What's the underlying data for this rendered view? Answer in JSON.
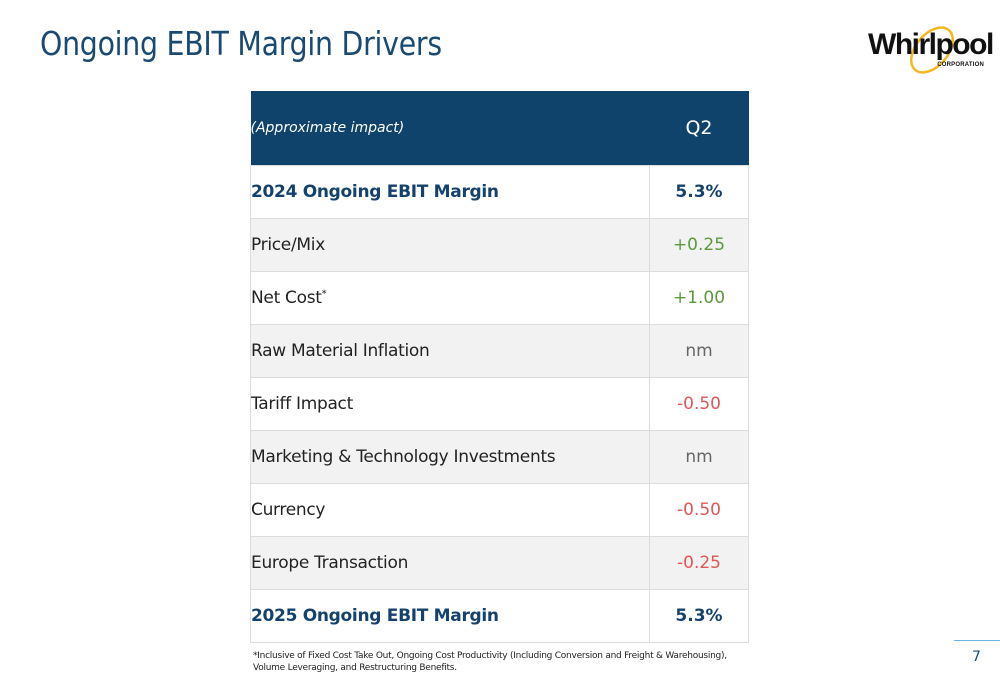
{
  "slide": {
    "title": "Ongoing EBIT Margin Drivers",
    "logo": {
      "wordmark": "Whirlpool",
      "subtext": "CORPORATION",
      "accent_color": "#f2b81e"
    },
    "page_number": "7"
  },
  "table": {
    "header": {
      "label": "(Approximate impact)",
      "column": "Q2"
    },
    "rows": [
      {
        "label": "2024 Ongoing EBIT Margin",
        "value": "5.3%",
        "style": "bold"
      },
      {
        "label": "Price/Mix",
        "value": "+0.25",
        "style": "positive"
      },
      {
        "label": "Net Cost",
        "superscript": "*",
        "value": "+1.00",
        "style": "positive"
      },
      {
        "label": "Raw Material Inflation",
        "value": "nm",
        "style": "neutral"
      },
      {
        "label": "Tariff Impact",
        "value": "-0.50",
        "style": "negative"
      },
      {
        "label": "Marketing & Technology Investments",
        "value": "nm",
        "style": "neutral"
      },
      {
        "label": "Currency",
        "value": "-0.50",
        "style": "negative"
      },
      {
        "label": "Europe Transaction",
        "value": "-0.25",
        "style": "negative"
      },
      {
        "label": "2025 Ongoing EBIT Margin",
        "value": "5.3%",
        "style": "bold"
      }
    ]
  },
  "footnote": "*Inclusive of Fixed Cost Take Out, Ongoing Cost Productivity (Including Conversion and Freight & Warehousing), Volume Leveraging, and Restructuring Benefits.",
  "colors": {
    "header_bg": "#10436b",
    "positive": "#5b9a3a",
    "negative": "#e05656",
    "title": "#1a4a72"
  }
}
